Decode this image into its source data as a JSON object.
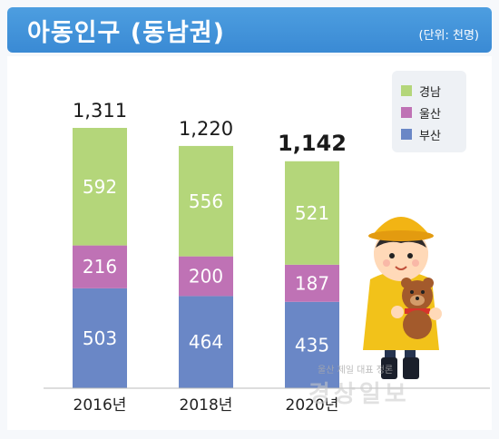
{
  "header": {
    "title": "아동인구 (동남권)",
    "unit": "(단위: 천명)"
  },
  "chart_data": {
    "type": "bar",
    "stacked": true,
    "categories": [
      "2016년",
      "2018년",
      "2020년"
    ],
    "totals": [
      "1,311",
      "1,220",
      "1,142"
    ],
    "series": [
      {
        "name": "부산",
        "values": [
          503,
          464,
          435
        ],
        "color": "#6a87c6"
      },
      {
        "name": "울산",
        "values": [
          216,
          200,
          187
        ],
        "color": "#bf72b5"
      },
      {
        "name": "경남",
        "values": [
          592,
          556,
          521
        ],
        "color": "#b4d67a"
      }
    ],
    "ylim": [
      0,
      1311
    ],
    "grid": false,
    "legend_placement": "top-right"
  },
  "legend": [
    {
      "label": "경남",
      "color": "#b4d67a"
    },
    {
      "label": "울산",
      "color": "#bf72b5"
    },
    {
      "label": "부산",
      "color": "#6a87c6"
    }
  ],
  "watermark": {
    "small": "울산 제일 대표 정론",
    "large": "경상일보"
  },
  "illustration": {
    "icon": "child-holding-teddy-bear-icon"
  }
}
